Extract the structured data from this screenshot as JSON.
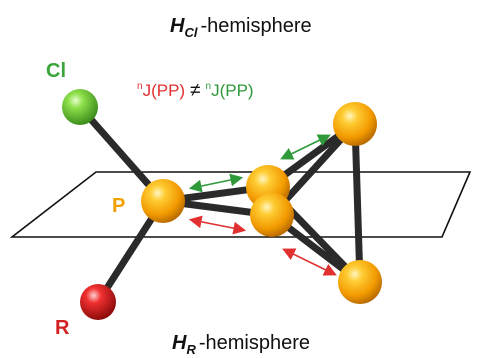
{
  "top_label": {
    "sym": "H",
    "sub": "Cl",
    "text": "-hemisphere"
  },
  "bottom_label": {
    "sym": "H",
    "sub": "R",
    "text": "-hemisphere"
  },
  "equation": {
    "sup1": "n",
    "left": "J(PP)",
    "neq": "≠",
    "sup2": "n",
    "right": "J(PP)"
  },
  "atoms": {
    "cl": "Cl",
    "p": "P",
    "r": "R"
  },
  "colors": {
    "cl_label": "#3aa53a",
    "p_label": "#f0a000",
    "r_label": "#d42020",
    "red_arrow": "#e03030",
    "green_arrow": "#2e9a3a",
    "bond": "#2a2a2a",
    "p_sphere": "#f5a300",
    "cl_sphere": "#6ac63a",
    "r_sphere": "#d42020"
  }
}
